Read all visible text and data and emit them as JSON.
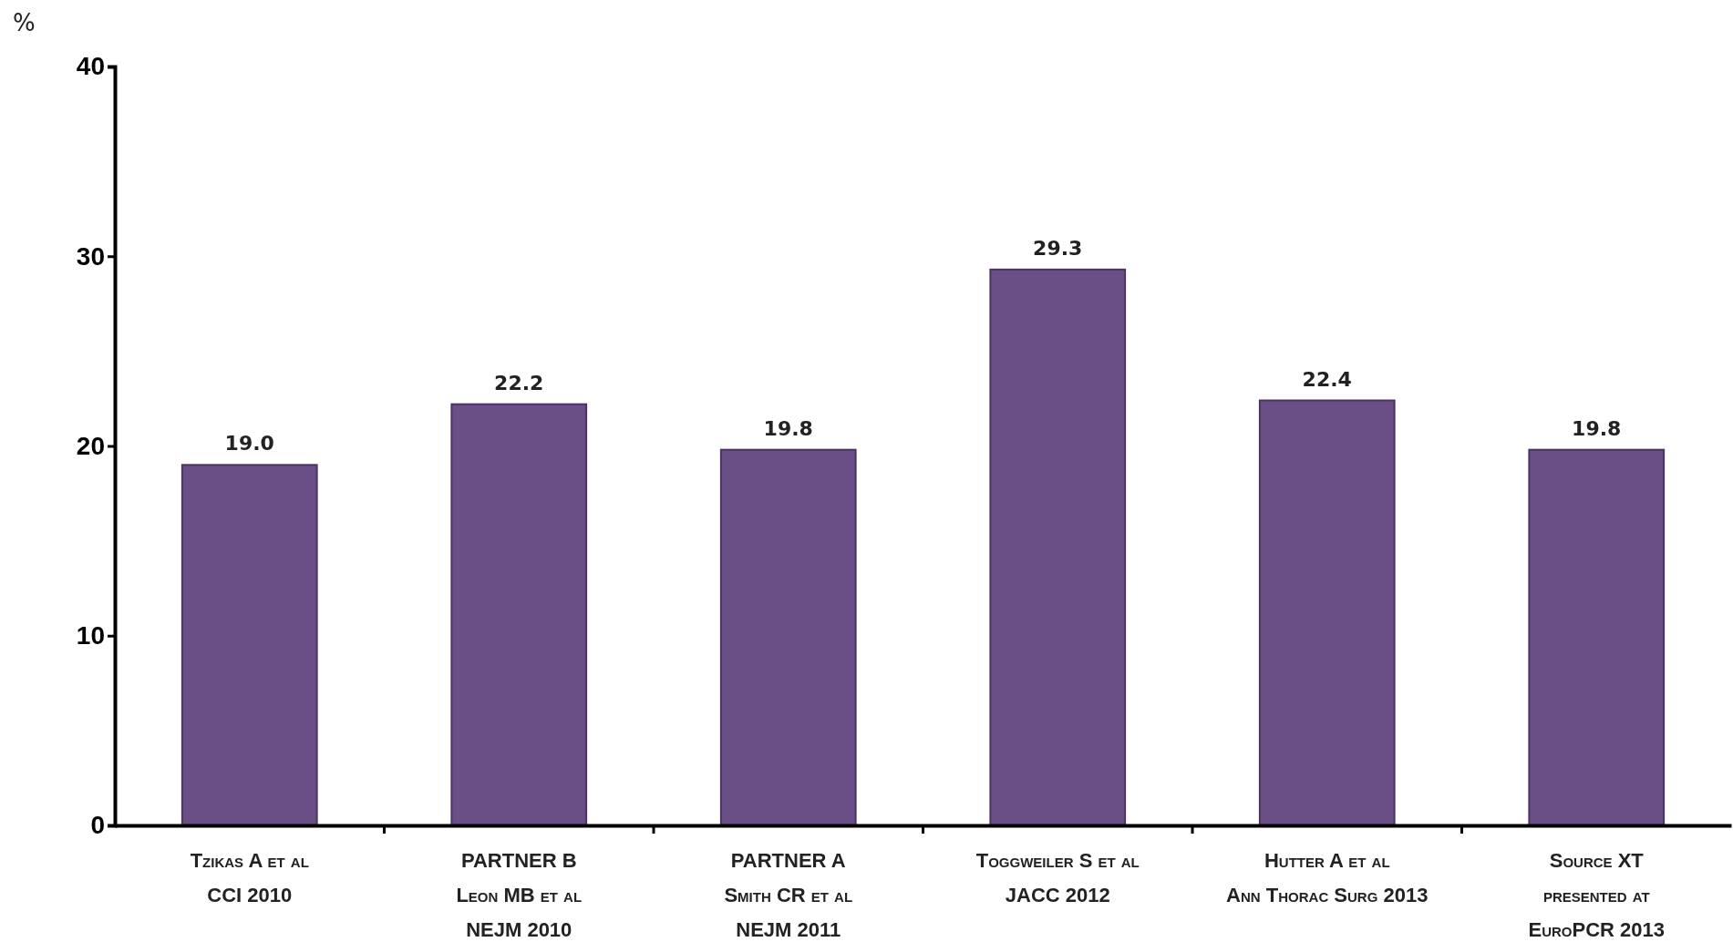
{
  "chart_data": {
    "type": "bar",
    "ylabel": "%",
    "categories": [
      "Tzikas A et al\nCCI 2010",
      "PARTNER B\nLeon MB et al\nNEJM 2010",
      "PARTNER A\nSmith CR et al\nNEJM 2011",
      "Toggweiler S et al\nJACC 2012",
      "Hutter A et al\nAnn Thorac Surg 2013",
      "Source XT\npresented at\nEuroPCR 2013"
    ],
    "values": [
      19.0,
      22.2,
      19.8,
      29.3,
      22.4,
      19.8
    ],
    "value_labels": [
      "19.0",
      "22.2",
      "19.8",
      "29.3",
      "22.4",
      "19.8"
    ],
    "color": "#6a4e86",
    "ylim": [
      0,
      40
    ],
    "yticks": [
      0,
      10,
      20,
      30,
      40
    ]
  }
}
